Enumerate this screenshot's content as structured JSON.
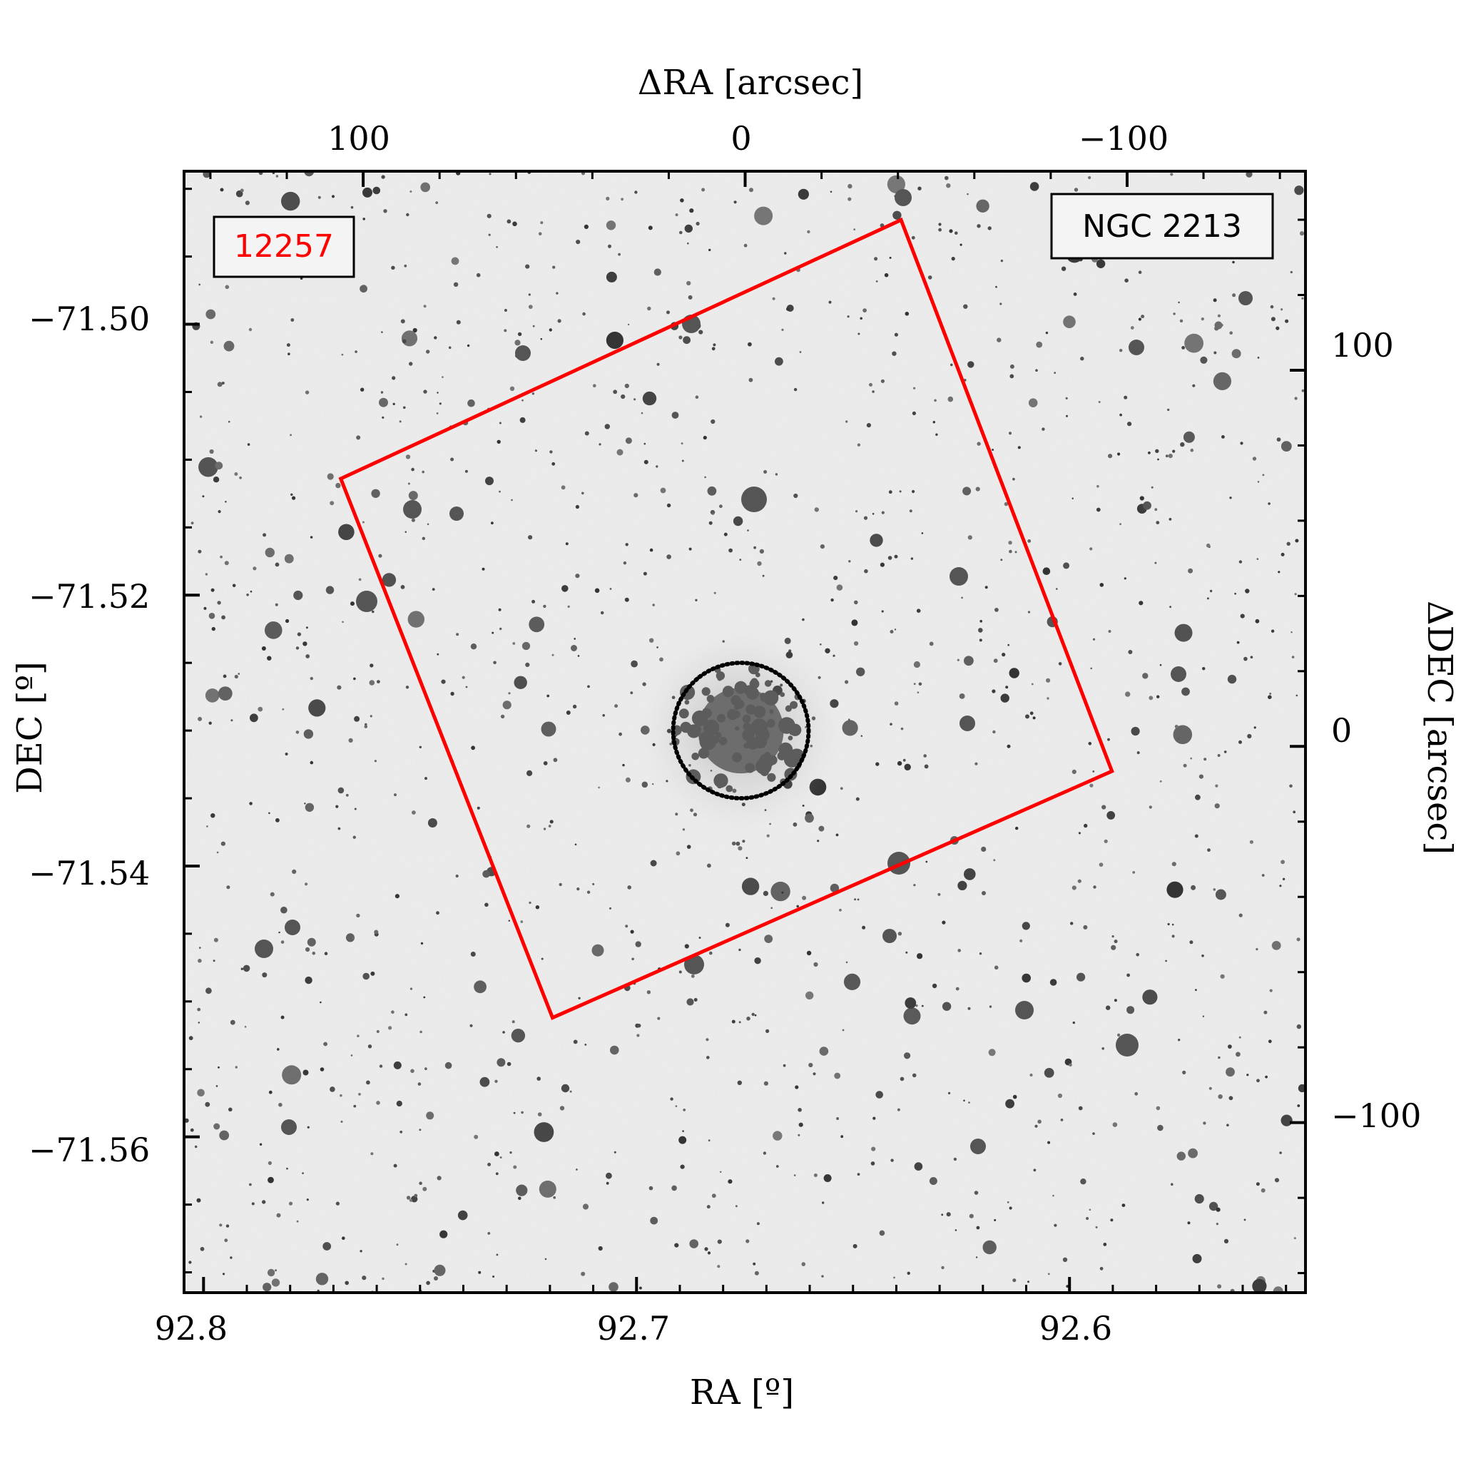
{
  "chart_data": {
    "type": "scatter",
    "title": "",
    "bottom_axis": {
      "label": "RA [º]",
      "range": [
        92.8045,
        92.5455
      ],
      "ticks": [
        {
          "value": 92.8,
          "label": "92.8"
        },
        {
          "value": 92.7,
          "label": "92.7"
        },
        {
          "value": 92.6,
          "label": "92.6"
        }
      ],
      "minor_step": 0.01
    },
    "left_axis": {
      "label": "DEC [º]",
      "range": [
        -71.5715,
        -71.4887
      ],
      "ticks": [
        {
          "value": -71.5,
          "label": "−71.50"
        },
        {
          "value": -71.52,
          "label": "−71.52"
        },
        {
          "value": -71.54,
          "label": "−71.54"
        },
        {
          "value": -71.56,
          "label": "−71.56"
        }
      ],
      "minor_step": 0.005
    },
    "top_axis": {
      "label": "ΔRA [arcsec]",
      "range": [
        146.9,
        -146.7
      ],
      "ticks": [
        {
          "value": 100,
          "label": "100"
        },
        {
          "value": 0,
          "label": "0"
        },
        {
          "value": -100,
          "label": "−100"
        }
      ],
      "minor_step": 20
    },
    "right_axis": {
      "label": "ΔDEC [arcsec]",
      "range": [
        -145.2,
        152.9
      ],
      "ticks": [
        {
          "value": 100,
          "label": "100"
        },
        {
          "value": 0,
          "label": "0"
        },
        {
          "value": -100,
          "label": "−100"
        }
      ],
      "minor_step": 20
    },
    "background": "inverted grayscale star field",
    "legend_left": {
      "text": "12257",
      "color": "#ff0000",
      "placement": "top-left"
    },
    "legend_right": {
      "text": "NGC 2213",
      "color": "#000000",
      "placement": "top-right"
    },
    "footprint": {
      "color": "#ff0000",
      "shape": "rotated square",
      "corners": [
        {
          "ra": 92.6389,
          "dec": -71.4923
        },
        {
          "ra": 92.5902,
          "dec": -71.533
        },
        {
          "ra": 92.7194,
          "dec": -71.5512
        },
        {
          "ra": 92.7683,
          "dec": -71.5114
        }
      ]
    },
    "cluster_circle": {
      "ra": 92.6759,
      "dec": -71.53,
      "radius_arcsec": 18,
      "style": "dotted",
      "color": "#000000"
    },
    "grid": false
  }
}
